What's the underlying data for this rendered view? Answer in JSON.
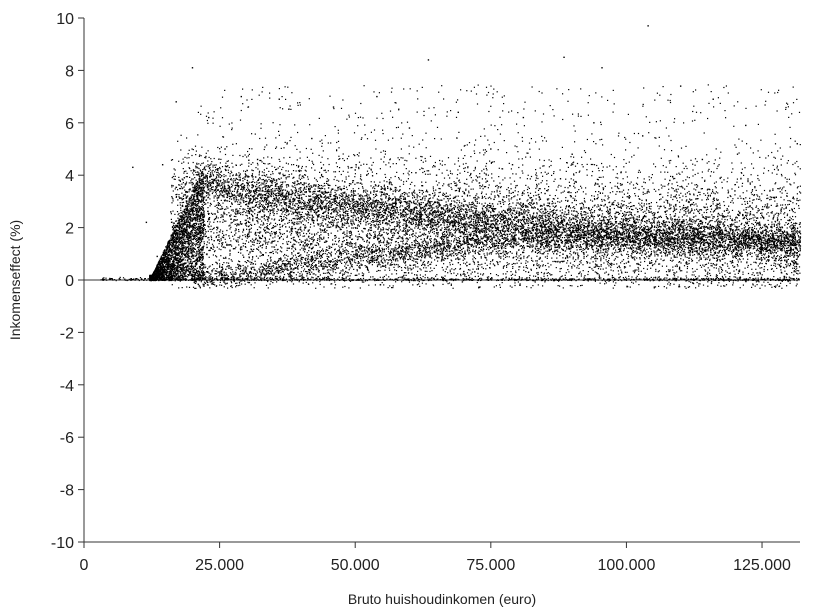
{
  "chart_data": {
    "type": "scatter",
    "title": "",
    "xlabel": "Bruto huishoudinkomen (euro)",
    "ylabel": "Inkomenseffect (%)",
    "xlim": [
      0,
      132000
    ],
    "ylim": [
      -10,
      10
    ],
    "xticks": [
      0,
      25000,
      50000,
      75000,
      100000,
      125000
    ],
    "xtick_labels": [
      "0",
      "25.000",
      "50.000",
      "75.000",
      "100.000",
      "125.000"
    ],
    "yticks": [
      10,
      8,
      6,
      4,
      2,
      0,
      -2,
      -4,
      -6,
      -8,
      -10
    ],
    "ytick_labels": [
      "10",
      "8",
      "6",
      "4",
      "2",
      "0",
      "-2",
      "-4",
      "-6",
      "-8",
      "-10"
    ],
    "grid": false,
    "legend": "none",
    "marker_color": "#000000",
    "series": [
      {
        "points": [
          [
            9000,
            4.3
          ],
          [
            11500,
            2.2
          ],
          [
            13500,
            0.9
          ],
          [
            14500,
            4.4
          ],
          [
            16000,
            2.6
          ],
          [
            17000,
            6.8
          ],
          [
            18500,
            3.9
          ],
          [
            20000,
            8.1
          ],
          [
            21000,
            3.6
          ],
          [
            23000,
            6.2
          ],
          [
            24000,
            1.5
          ],
          [
            26000,
            5.0
          ],
          [
            28000,
            3.2
          ],
          [
            29000,
            7.0
          ],
          [
            31000,
            1.1
          ],
          [
            32000,
            4.6
          ],
          [
            34000,
            2.4
          ],
          [
            36000,
            6.9
          ],
          [
            38000,
            0.7
          ],
          [
            40000,
            3.7
          ],
          [
            42000,
            5.4
          ],
          [
            44000,
            1.9
          ],
          [
            46000,
            6.6
          ],
          [
            48000,
            2.9
          ],
          [
            50000,
            4.2
          ],
          [
            52000,
            0.9
          ],
          [
            54000,
            7.0
          ],
          [
            56000,
            3.5
          ],
          [
            58000,
            1.6
          ],
          [
            60000,
            5.8
          ],
          [
            62000,
            2.5
          ],
          [
            63500,
            8.4
          ],
          [
            65000,
            4.0
          ],
          [
            67000,
            0.5
          ],
          [
            69000,
            6.4
          ],
          [
            71000,
            2.2
          ],
          [
            73000,
            3.6
          ],
          [
            75000,
            5.0
          ],
          [
            77000,
            1.2
          ],
          [
            79000,
            4.4
          ],
          [
            81000,
            6.2
          ],
          [
            83000,
            2.0
          ],
          [
            85000,
            3.3
          ],
          [
            87000,
            0.7
          ],
          [
            88500,
            8.5
          ],
          [
            90000,
            4.8
          ],
          [
            92000,
            1.9
          ],
          [
            94000,
            6.0
          ],
          [
            95500,
            8.1
          ],
          [
            97000,
            2.7
          ],
          [
            99000,
            4.1
          ],
          [
            101000,
            1.0
          ],
          [
            103000,
            5.5
          ],
          [
            104000,
            9.7
          ],
          [
            106000,
            2.4
          ],
          [
            108000,
            3.8
          ],
          [
            110000,
            7.4
          ],
          [
            112000,
            1.5
          ],
          [
            114000,
            4.6
          ],
          [
            116000,
            6.9
          ],
          [
            118000,
            2.1
          ],
          [
            120000,
            3.4
          ],
          [
            122000,
            5.9
          ],
          [
            124000,
            0.8
          ],
          [
            126000,
            2.9
          ],
          [
            128000,
            4.2
          ],
          [
            130000,
            1.3
          ],
          [
            131500,
            5.2
          ]
        ]
      }
    ]
  }
}
